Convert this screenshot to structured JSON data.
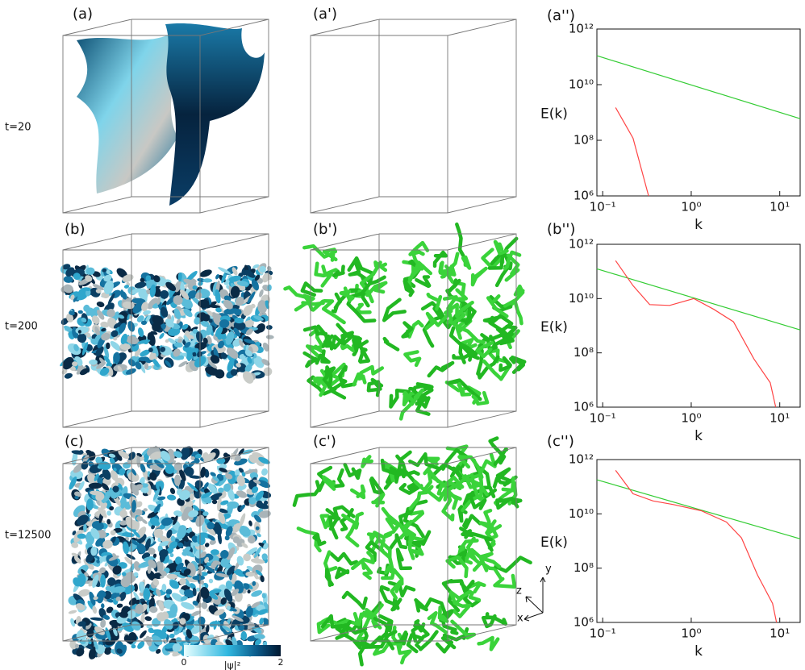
{
  "row_labels": [
    "t=20",
    "t=200",
    "t=12500"
  ],
  "panel_labels": [
    [
      "(a)",
      "(a')",
      "(a'')"
    ],
    [
      "(b)",
      "(b')",
      "(b'')"
    ],
    [
      "(c)",
      "(c')",
      "(c'')"
    ]
  ],
  "colorbar": {
    "label": "|ψ|²",
    "range": [
      0,
      2
    ],
    "ticks": [
      0,
      2
    ]
  },
  "axes_triad": {
    "z": "z",
    "y": "y",
    "x": "x"
  },
  "chart_data": [
    {
      "type": "line",
      "xlabel": "k",
      "ylabel": "E(k)",
      "xscale": "log",
      "yscale": "log",
      "xlim": [
        0.086,
        17
      ],
      "ylim": [
        1000000,
        1000000000000
      ],
      "xticks": [
        {
          "value": 0.1,
          "label": "10⁻¹"
        },
        {
          "value": 1,
          "label": "10⁰"
        },
        {
          "value": 10,
          "label": "10¹"
        }
      ],
      "yticks": [
        {
          "value": 1000000,
          "label": "10⁶"
        },
        {
          "value": 100000000,
          "label": "10⁸"
        },
        {
          "value": 10000000000,
          "label": "10¹⁰"
        },
        {
          "value": 1000000000000,
          "label": "10¹²"
        }
      ],
      "series": [
        {
          "color": "#33cc33",
          "x": [
            0.086,
            17
          ],
          "values": [
            110000000000,
            600000000
          ]
        },
        {
          "color": "#ff4444",
          "x": [
            0.14,
            0.22,
            0.33
          ],
          "values": [
            1500000000,
            120000000,
            1000000
          ]
        }
      ]
    },
    {
      "type": "line",
      "xlabel": "k",
      "ylabel": "E(k)",
      "xscale": "log",
      "yscale": "log",
      "xlim": [
        0.086,
        17
      ],
      "ylim": [
        1000000,
        1000000000000
      ],
      "xticks": [
        {
          "value": 0.1,
          "label": "10⁻¹"
        },
        {
          "value": 1,
          "label": "10⁰"
        },
        {
          "value": 10,
          "label": "10¹"
        }
      ],
      "yticks": [
        {
          "value": 1000000,
          "label": "10⁶"
        },
        {
          "value": 100000000,
          "label": "10⁸"
        },
        {
          "value": 10000000000,
          "label": "10¹⁰"
        },
        {
          "value": 1000000000000,
          "label": "10¹²"
        }
      ],
      "series": [
        {
          "color": "#33cc33",
          "x": [
            0.086,
            17
          ],
          "values": [
            125000000000,
            700000000
          ]
        },
        {
          "color": "#ff4444",
          "x": [
            0.14,
            0.22,
            0.34,
            0.57,
            1.07,
            1.8,
            3.0,
            5.1,
            7.8,
            9.0
          ],
          "values": [
            250000000000,
            30000000000,
            6000000000,
            5600000000,
            10000000000,
            4000000000,
            1400000000,
            60000000,
            8000000,
            1000000
          ]
        }
      ]
    },
    {
      "type": "line",
      "xlabel": "k",
      "ylabel": "E(k)",
      "xscale": "log",
      "yscale": "log",
      "xlim": [
        0.086,
        17
      ],
      "ylim": [
        1000000,
        1000000000000
      ],
      "xticks": [
        {
          "value": 0.1,
          "label": "10⁻¹"
        },
        {
          "value": 1,
          "label": "10⁰"
        },
        {
          "value": 10,
          "label": "10¹"
        }
      ],
      "yticks": [
        {
          "value": 1000000,
          "label": "10⁶"
        },
        {
          "value": 100000000,
          "label": "10⁸"
        },
        {
          "value": 10000000000,
          "label": "10¹⁰"
        },
        {
          "value": 1000000000000,
          "label": "10¹²"
        }
      ],
      "series": [
        {
          "color": "#33cc33",
          "x": [
            0.086,
            17
          ],
          "values": [
            180000000000,
            1200000000
          ]
        },
        {
          "color": "#ff4444",
          "x": [
            0.14,
            0.22,
            0.37,
            0.63,
            1.3,
            2.5,
            3.7,
            5.6,
            8.3,
            9.2
          ],
          "values": [
            400000000000,
            55000000000,
            30000000000,
            22000000000,
            13000000000,
            5000000000,
            1300000000,
            56000000,
            5000000,
            1000000
          ]
        }
      ]
    }
  ]
}
